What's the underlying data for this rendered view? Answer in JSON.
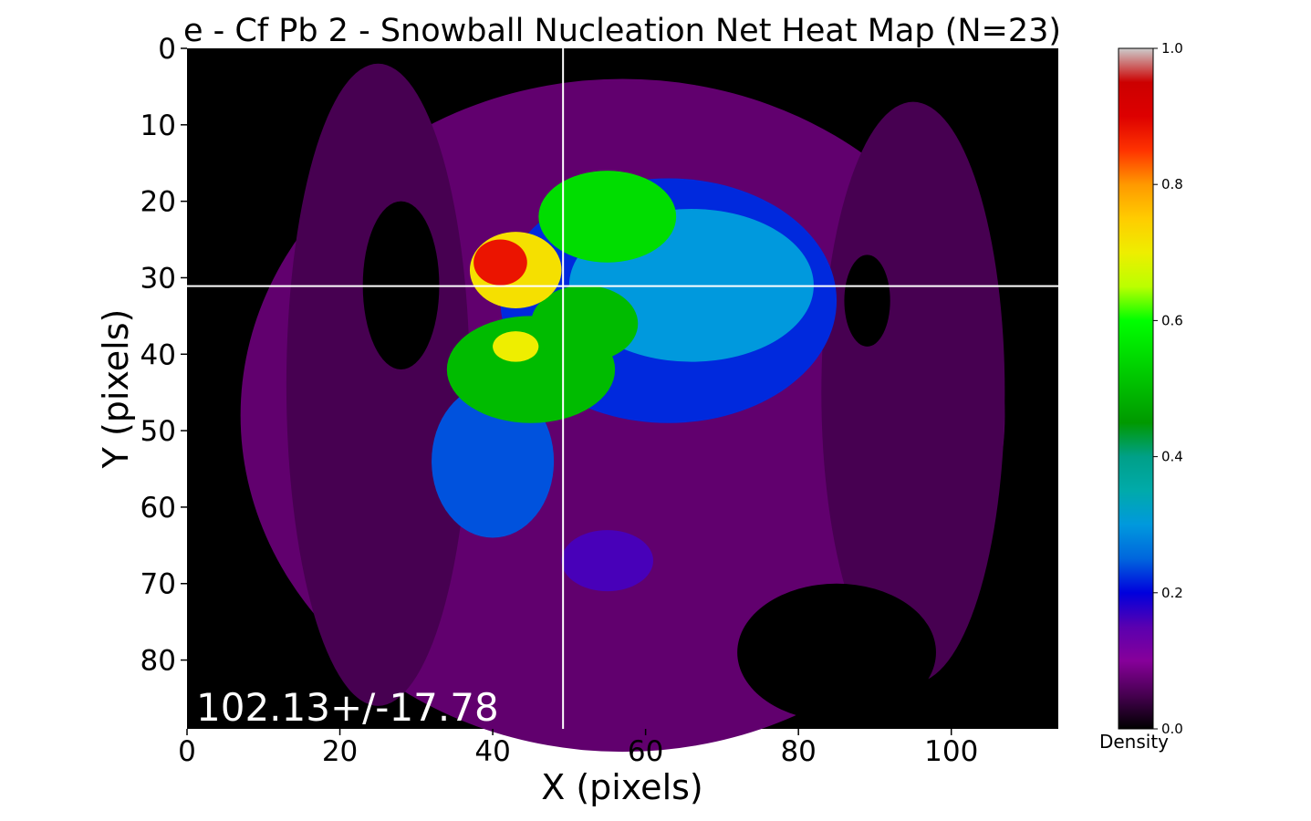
{
  "chart_data": {
    "type": "heatmap",
    "title": "e - Cf Pb 2 - Snowball Nucleation Net Heat Map (N=23)",
    "xlabel": "X (pixels)",
    "ylabel": "Y (pixels)",
    "xlim": [
      0,
      114
    ],
    "ylim": [
      89,
      0
    ],
    "xticks": [
      0,
      20,
      40,
      60,
      80,
      100
    ],
    "yticks": [
      0,
      10,
      20,
      30,
      40,
      50,
      60,
      70,
      80
    ],
    "crosshair": {
      "x": 49.2,
      "y": 31.1
    },
    "annotation": "102.13+/-17.78",
    "colorbar": {
      "label": "Density",
      "range": [
        0.0,
        1.0
      ],
      "ticks": [
        "0.0",
        "0.2",
        "0.4",
        "0.6",
        "0.8",
        "1.0"
      ],
      "colormap": "nipy_spectral"
    },
    "grid": false,
    "regions": [
      {
        "kind": "ellipse",
        "cx": 57,
        "cy": 48,
        "rx": 50,
        "ry": 44,
        "density": 0.07
      },
      {
        "kind": "ellipse",
        "cx": 25,
        "cy": 44,
        "rx": 12,
        "ry": 42,
        "density": 0.05
      },
      {
        "kind": "ellipse",
        "cx": 95,
        "cy": 45,
        "rx": 12,
        "ry": 38,
        "density": 0.05
      },
      {
        "kind": "ellipse",
        "cx": 28,
        "cy": 31,
        "rx": 5,
        "ry": 11,
        "density": 0.0
      },
      {
        "kind": "ellipse",
        "cx": 89,
        "cy": 33,
        "rx": 3,
        "ry": 6,
        "density": 0.0
      },
      {
        "kind": "ellipse",
        "cx": 85,
        "cy": 79,
        "rx": 13,
        "ry": 9,
        "density": 0.0
      },
      {
        "kind": "ellipse",
        "cx": 63,
        "cy": 33,
        "rx": 22,
        "ry": 16,
        "density": 0.22
      },
      {
        "kind": "ellipse",
        "cx": 40,
        "cy": 54,
        "rx": 8,
        "ry": 10,
        "density": 0.24
      },
      {
        "kind": "ellipse",
        "cx": 55,
        "cy": 67,
        "rx": 6,
        "ry": 4,
        "density": 0.16
      },
      {
        "kind": "ellipse",
        "cx": 66,
        "cy": 31,
        "rx": 16,
        "ry": 10,
        "density": 0.3
      },
      {
        "kind": "ellipse",
        "cx": 45,
        "cy": 42,
        "rx": 11,
        "ry": 7,
        "density": 0.5
      },
      {
        "kind": "ellipse",
        "cx": 55,
        "cy": 22,
        "rx": 9,
        "ry": 6,
        "density": 0.55
      },
      {
        "kind": "ellipse",
        "cx": 52,
        "cy": 36,
        "rx": 7,
        "ry": 5,
        "density": 0.5
      },
      {
        "kind": "ellipse",
        "cx": 43,
        "cy": 39,
        "rx": 3,
        "ry": 2,
        "density": 0.7
      },
      {
        "kind": "ellipse",
        "cx": 43,
        "cy": 29,
        "rx": 6,
        "ry": 5,
        "density": 0.72
      },
      {
        "kind": "ellipse",
        "cx": 41,
        "cy": 28,
        "rx": 3.5,
        "ry": 3,
        "density": 0.88
      }
    ]
  }
}
